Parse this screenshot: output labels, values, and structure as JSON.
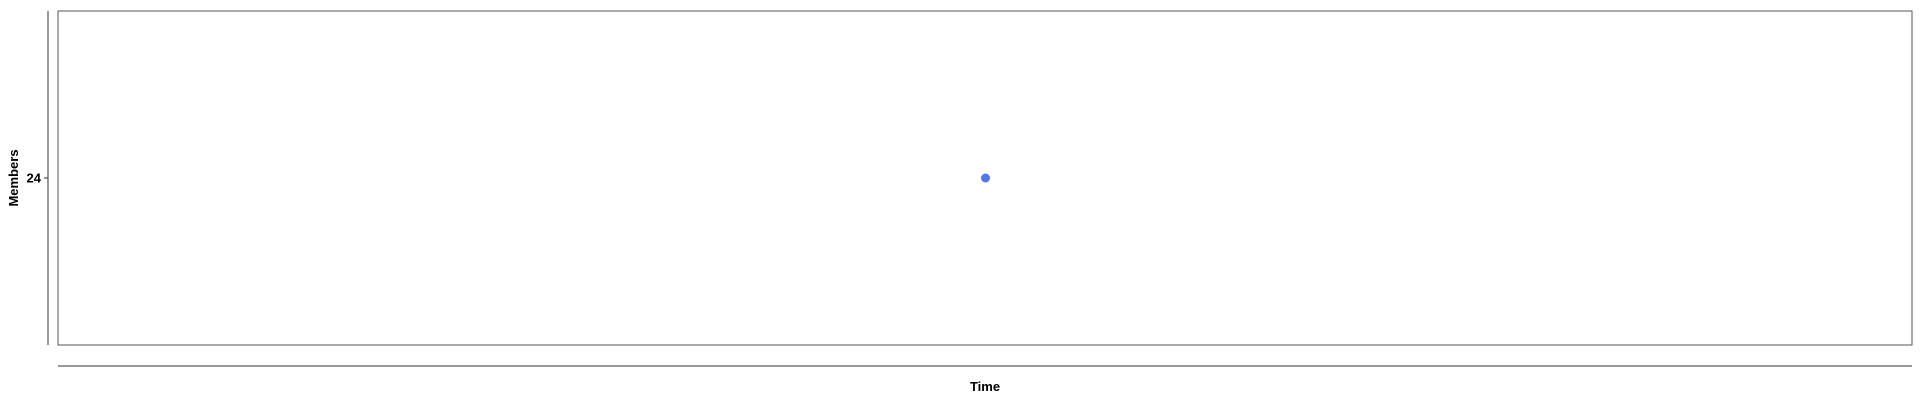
{
  "chart_data": {
    "type": "scatter",
    "xlabel": "Time",
    "ylabel": "Members",
    "x_ticks": [],
    "y_ticks": [
      24
    ],
    "series": [
      {
        "points": [
          {
            "y": 24
          }
        ],
        "color": "#5577e6"
      }
    ],
    "ylim": [
      23,
      25
    ],
    "grid": false,
    "legend": "none"
  }
}
